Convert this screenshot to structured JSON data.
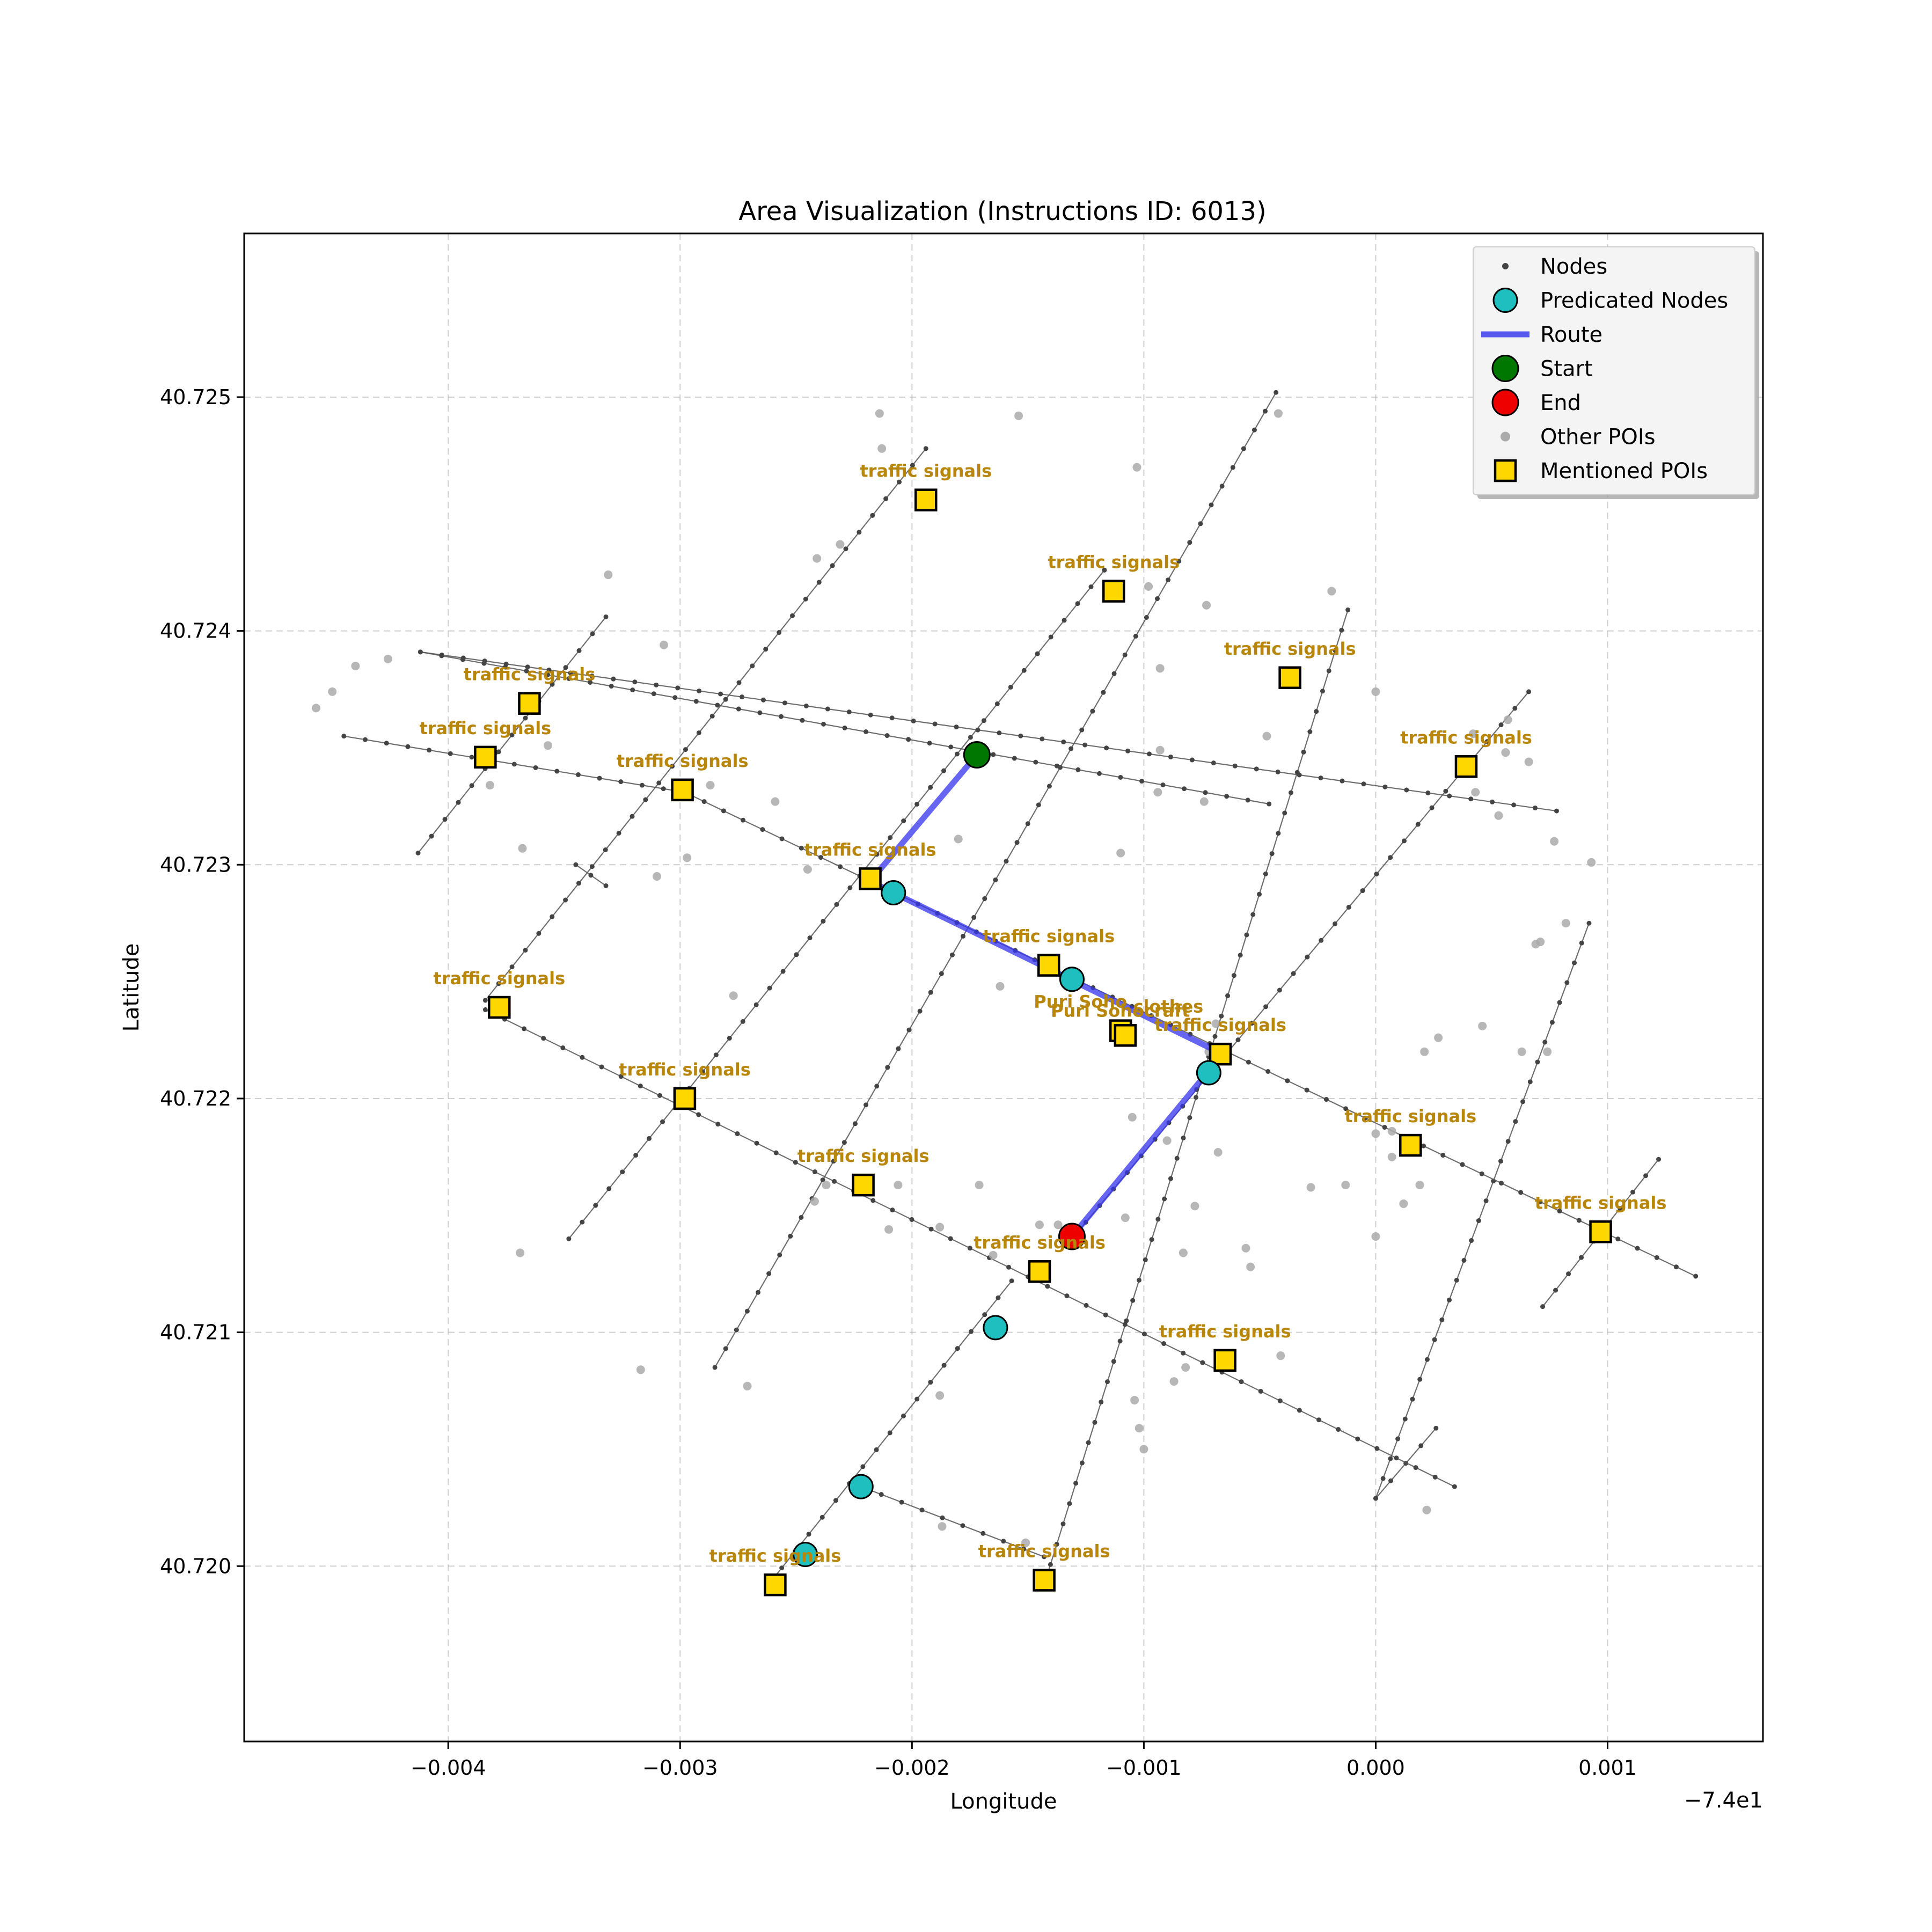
{
  "chart_data": {
    "type": "scatter",
    "title": "Area Visualization (Instructions ID: 6013)",
    "xlabel": "Longitude",
    "ylabel": "Latitude",
    "x_offset_label": "−7.4e1",
    "xlim": [
      -0.00488,
      0.00167
    ],
    "ylim": [
      40.71925,
      40.7257
    ],
    "xticks": [
      -0.004,
      -0.003,
      -0.002,
      -0.001,
      0.0,
      0.001
    ],
    "xtick_labels": [
      "−0.004",
      "−0.003",
      "−0.002",
      "−0.001",
      "0.000",
      "0.001"
    ],
    "yticks": [
      40.72,
      40.721,
      40.722,
      40.723,
      40.724,
      40.725
    ],
    "ytick_labels": [
      "40.720",
      "40.721",
      "40.722",
      "40.723",
      "40.724",
      "40.725"
    ],
    "grid": true,
    "legend_position": "top-right",
    "colors": {
      "nodes": "#444444",
      "edges": "#555555",
      "predicated": "#1fbfbf",
      "route": "#3333ee",
      "start": "#007700",
      "end": "#ee0000",
      "other_poi": "#aaaaaa",
      "mentioned_poi": "#ffd700",
      "poi_label": "#b8860b"
    },
    "legend": [
      {
        "key": "nodes",
        "label": "Nodes"
      },
      {
        "key": "predicated",
        "label": "Predicated Nodes"
      },
      {
        "key": "route",
        "label": "Route"
      },
      {
        "key": "start",
        "label": "Start"
      },
      {
        "key": "end",
        "label": "End"
      },
      {
        "key": "other_poi",
        "label": "Other POIs"
      },
      {
        "key": "mentioned_poi",
        "label": "Mentioned POIs"
      }
    ],
    "streets": [
      [
        [
          -0.00413,
          40.72305
        ],
        [
          -0.00332,
          40.72406
        ]
      ],
      [
        [
          -0.00384,
          40.72242
        ],
        [
          -0.00194,
          40.72478
        ]
      ],
      [
        [
          -0.00348,
          40.7214
        ],
        [
          -0.00117,
          40.72426
        ]
      ],
      [
        [
          -0.00285,
          40.72085
        ],
        [
          -0.00043,
          40.72502
        ]
      ],
      [
        [
          -0.00262,
          40.71992
        ],
        [
          -0.00157,
          40.72122
        ]
      ],
      [
        [
          -0.00143,
          40.71992
        ],
        [
          -0.00012,
          40.72409
        ]
      ],
      [
        [
          -0.00131,
          40.7214
        ],
        [
          0.00066,
          40.72374
        ]
      ],
      [
        [
          0.0,
          40.72029
        ],
        [
          0.00026,
          40.72059
        ]
      ],
      [
        [
          0.00072,
          40.72111
        ],
        [
          0.00122,
          40.72174
        ]
      ],
      [
        [
          0.0,
          40.72029
        ],
        [
          0.00092,
          40.72275
        ]
      ],
      [
        [
          -0.00412,
          40.72391
        ],
        [
          -0.00046,
          40.72326
        ]
      ],
      [
        [
          -0.00412,
          40.72391
        ],
        [
          0.00078,
          40.72323
        ]
      ],
      [
        [
          -0.00445,
          40.72355
        ],
        [
          -0.00298,
          40.72331
        ]
      ],
      [
        [
          -0.00298,
          40.72331
        ],
        [
          0.00138,
          40.72124
        ]
      ],
      [
        [
          -0.00384,
          40.72238
        ],
        [
          0.00034,
          40.72034
        ]
      ],
      [
        [
          -0.00222,
          40.72034
        ],
        [
          -0.00143,
          40.72004
        ]
      ],
      [
        [
          -0.00345,
          40.723
        ],
        [
          -0.00332,
          40.72291
        ]
      ]
    ],
    "predicated_nodes": [
      [
        -0.00208,
        40.72288
      ],
      [
        -0.00131,
        40.72251
      ],
      [
        -0.00072,
        40.72211
      ],
      [
        -0.00164,
        40.72102
      ],
      [
        -0.00222,
        40.72034
      ],
      [
        -0.00246,
        40.72005
      ]
    ],
    "route": [
      [
        -0.00172,
        40.72347
      ],
      [
        -0.00218,
        40.72293
      ],
      [
        -0.00208,
        40.72288
      ],
      [
        -0.00066,
        40.72219
      ],
      [
        -0.00131,
        40.72141
      ]
    ],
    "start": [
      -0.00172,
      40.72347
    ],
    "end": [
      -0.00131,
      40.72141
    ],
    "other_pois": [
      [
        -0.00214,
        40.72493
      ],
      [
        -0.00154,
        40.72492
      ],
      [
        -0.00213,
        40.72478
      ],
      [
        -0.00103,
        40.7247
      ],
      [
        -0.00042,
        40.72493
      ],
      [
        -0.00241,
        40.72431
      ],
      [
        -0.00231,
        40.72437
      ],
      [
        -0.00331,
        40.72424
      ],
      [
        -0.00098,
        40.72419
      ],
      [
        -0.00073,
        40.72411
      ],
      [
        -0.00019,
        40.72417
      ],
      [
        -0.00307,
        40.72394
      ],
      [
        -0.00426,
        40.72388
      ],
      [
        -0.0044,
        40.72385
      ],
      [
        -0.0045,
        40.72374
      ],
      [
        -0.00457,
        40.72367
      ],
      [
        -0.00093,
        40.72384
      ],
      [
        0.0,
        40.72374
      ],
      [
        0.00057,
        40.72362
      ],
      [
        0.00042,
        40.72356
      ],
      [
        -0.00047,
        40.72355
      ],
      [
        -0.00093,
        40.72349
      ],
      [
        0.00056,
        40.72348
      ],
      [
        0.00066,
        40.72344
      ],
      [
        -0.00357,
        40.72351
      ],
      [
        -0.00382,
        40.72334
      ],
      [
        -0.00287,
        40.72334
      ],
      [
        -0.00094,
        40.72331
      ],
      [
        -0.00074,
        40.72327
      ],
      [
        -0.0018,
        40.72311
      ],
      [
        -0.00259,
        40.72327
      ],
      [
        0.00043,
        40.72331
      ],
      [
        0.00053,
        40.72321
      ],
      [
        0.00077,
        40.7231
      ],
      [
        -0.0011,
        40.72305
      ],
      [
        -0.00368,
        40.72307
      ],
      [
        -0.00297,
        40.72303
      ],
      [
        0.00093,
        40.72301
      ],
      [
        -0.00245,
        40.72298
      ],
      [
        -0.0031,
        40.72295
      ],
      [
        0.00082,
        40.72275
      ],
      [
        0.00071,
        40.72267
      ],
      [
        0.00069,
        40.72266
      ],
      [
        -0.00162,
        40.72248
      ],
      [
        -0.00277,
        40.72244
      ],
      [
        -0.00069,
        40.72232
      ],
      [
        0.00046,
        40.72231
      ],
      [
        0.00027,
        40.72226
      ],
      [
        0.00021,
        40.7222
      ],
      [
        -0.00072,
        40.7222
      ],
      [
        0.00063,
        40.7222
      ],
      [
        0.00074,
        40.7222
      ],
      [
        0.0,
        40.72185
      ],
      [
        7e-05,
        40.72186
      ],
      [
        -0.00105,
        40.72192
      ],
      [
        -0.0009,
        40.72182
      ],
      [
        -0.00068,
        40.72177
      ],
      [
        -0.00028,
        40.72162
      ],
      [
        -0.00013,
        40.72163
      ],
      [
        0.00019,
        40.72163
      ],
      [
        7e-05,
        40.72175
      ],
      [
        -0.00206,
        40.72163
      ],
      [
        -0.00237,
        40.72163
      ],
      [
        -0.00242,
        40.72156
      ],
      [
        -0.00171,
        40.72163
      ],
      [
        -0.0021,
        40.72144
      ],
      [
        -0.00188,
        40.72145
      ],
      [
        -0.00145,
        40.72146
      ],
      [
        -0.00108,
        40.72149
      ],
      [
        -0.00137,
        40.72146
      ],
      [
        -0.00165,
        40.72133
      ],
      [
        -0.00078,
        40.72154
      ],
      [
        -0.00056,
        40.72136
      ],
      [
        -0.00054,
        40.72128
      ],
      [
        -0.00083,
        40.72134
      ],
      [
        0.0,
        40.72141
      ],
      [
        0.00012,
        40.72155
      ],
      [
        -0.00369,
        40.72134
      ],
      [
        -0.00317,
        40.72084
      ],
      [
        -0.00271,
        40.72077
      ],
      [
        -0.00188,
        40.72073
      ],
      [
        -0.00082,
        40.72085
      ],
      [
        -0.00041,
        40.7209
      ],
      [
        -0.00087,
        40.72079
      ],
      [
        -0.00104,
        40.72071
      ],
      [
        -0.00102,
        40.72059
      ],
      [
        -0.001,
        40.7205
      ],
      [
        -0.00187,
        40.72017
      ],
      [
        -0.00151,
        40.7201
      ],
      [
        0.00022,
        40.72024
      ]
    ],
    "mentioned_pois": [
      {
        "x": -0.00194,
        "y": 40.72456,
        "label": "traffic signals"
      },
      {
        "x": -0.00113,
        "y": 40.72417,
        "label": "traffic signals"
      },
      {
        "x": -0.00037,
        "y": 40.7238,
        "label": "traffic signals"
      },
      {
        "x": 0.00039,
        "y": 40.72342,
        "label": "traffic signals"
      },
      {
        "x": -0.00365,
        "y": 40.72369,
        "label": "traffic signals"
      },
      {
        "x": -0.00384,
        "y": 40.72346,
        "label": "traffic signals"
      },
      {
        "x": -0.00299,
        "y": 40.72332,
        "label": "traffic signals"
      },
      {
        "x": -0.00218,
        "y": 40.72294,
        "label": "traffic signals"
      },
      {
        "x": -0.00141,
        "y": 40.72257,
        "label": "traffic signals"
      },
      {
        "x": -0.00067,
        "y": 40.72219,
        "label": "traffic signals"
      },
      {
        "x": -0.0011,
        "y": 40.72229,
        "label": "Puri Soho"
      },
      {
        "x": -0.00108,
        "y": 40.72227,
        "label": "clothes"
      },
      {
        "x": -0.00378,
        "y": 40.72239,
        "label": "traffic signals"
      },
      {
        "x": -0.00298,
        "y": 40.722,
        "label": "traffic signals"
      },
      {
        "x": 0.00015,
        "y": 40.7218,
        "label": "traffic signals"
      },
      {
        "x": -0.00221,
        "y": 40.72163,
        "label": "traffic signals"
      },
      {
        "x": 0.00097,
        "y": 40.72143,
        "label": "traffic signals"
      },
      {
        "x": -0.00145,
        "y": 40.72126,
        "label": "traffic signals"
      },
      {
        "x": -0.00065,
        "y": 40.72088,
        "label": "traffic signals"
      },
      {
        "x": -0.00259,
        "y": 40.71992,
        "label": "traffic signals"
      },
      {
        "x": -0.00143,
        "y": 40.71994,
        "label": "traffic signals"
      }
    ],
    "poi_extra_labels": [
      {
        "x": -0.0012,
        "y": 40.72235,
        "label": "Puri Soho"
      },
      {
        "x": -0.0009,
        "y": 40.72235,
        "label": "craft"
      }
    ]
  }
}
